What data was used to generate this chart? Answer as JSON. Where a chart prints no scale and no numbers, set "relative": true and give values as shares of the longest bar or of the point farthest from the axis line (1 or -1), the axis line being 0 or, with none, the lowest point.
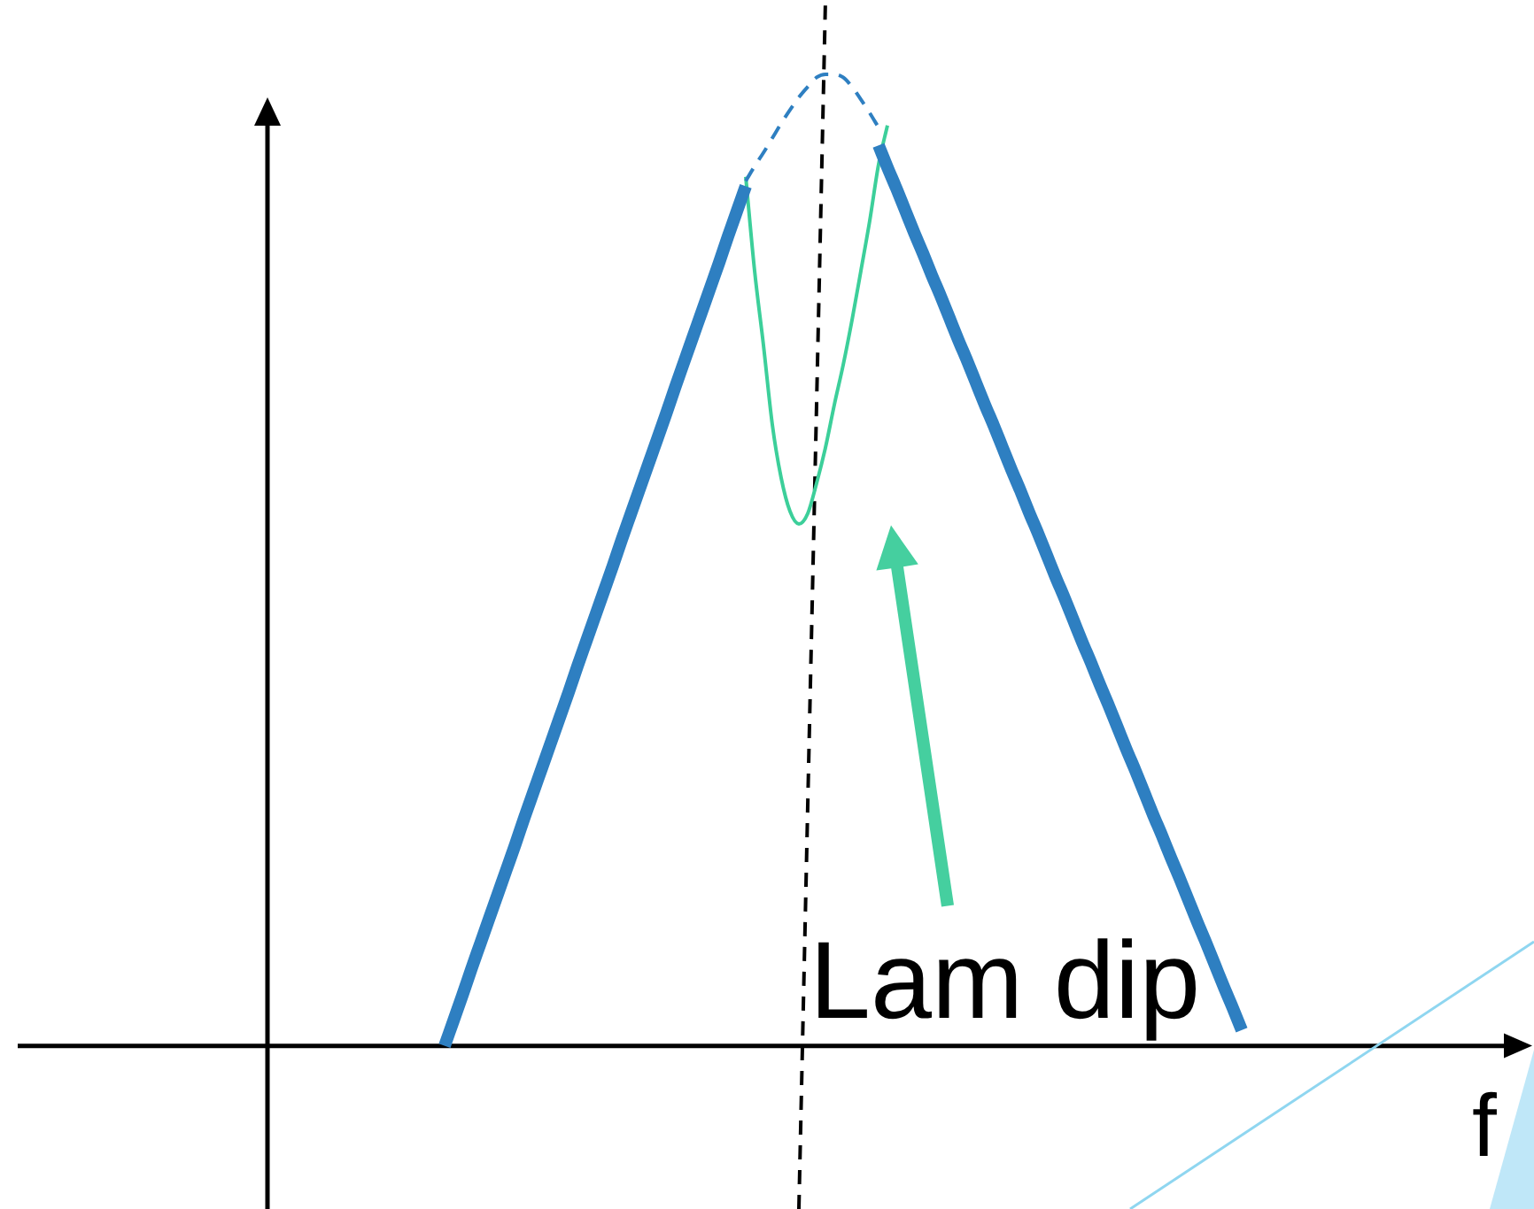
{
  "chart_data": {
    "type": "line",
    "relative": true,
    "tick_labels": false,
    "xlabel": "f",
    "annotations": [
      "Lam dip"
    ],
    "categories": [
      null,
      null,
      null,
      null,
      null,
      null,
      null,
      null,
      null,
      null,
      null,
      null,
      null,
      null,
      null,
      null,
      null,
      null,
      null,
      null,
      null,
      null,
      null,
      null,
      null,
      null,
      null,
      null,
      null,
      null,
      null,
      null,
      null,
      null,
      null,
      null,
      null,
      null,
      null,
      null,
      null,
      null,
      null,
      null,
      null,
      null,
      null,
      null,
      null,
      null,
      null,
      null,
      null,
      null,
      null,
      null,
      null,
      null,
      null,
      null,
      null,
      null,
      null,
      null,
      null,
      null,
      null,
      null,
      null,
      null,
      null,
      null,
      null,
      null,
      null,
      null,
      null,
      null,
      null,
      null,
      null,
      null,
      null,
      null,
      null,
      null,
      null,
      null,
      null,
      null,
      null,
      null,
      null,
      null,
      null,
      null,
      null,
      null,
      null,
      null,
      null,
      null,
      null,
      null,
      null,
      null,
      null,
      null,
      null,
      null,
      null,
      null,
      null,
      null,
      null,
      null,
      null,
      null,
      null,
      null,
      null,
      null,
      null,
      null,
      null,
      null,
      null,
      null,
      null,
      null,
      null,
      null,
      null,
      null,
      null,
      null,
      null,
      null,
      null,
      null,
      null,
      null,
      null,
      null
    ],
    "series": [
      {
        "color": "#2e7fc1",
        "values": [
          null,
          null,
          null,
          null,
          null,
          null,
          null,
          null,
          null,
          null,
          null,
          null,
          null,
          null,
          null,
          null,
          null,
          null,
          null,
          null,
          0,
          0.024,
          0.048,
          0.073,
          0.097,
          0.121,
          0.145,
          0.169,
          0.193,
          0.218,
          0.242,
          0.266,
          0.29,
          0.314,
          0.338,
          0.363,
          0.387,
          0.411,
          0.435,
          0.459,
          0.484,
          0.508,
          0.532,
          0.556,
          0.58,
          0.604,
          0.629,
          0.653,
          0.677,
          0.701,
          0.725,
          0.749,
          0.774,
          0.798,
          0.822,
          null,
          null,
          null,
          null,
          null,
          null,
          null,
          null,
          null,
          null,
          null,
          null,
          null,
          null,
          null,
          null,
          null,
          null,
          null,
          null,
          null,
          null,
          null,
          null,
          null,
          null,
          null,
          null,
          null,
          null,
          null,
          null,
          null,
          null,
          null,
          null,
          null,
          null,
          null,
          null,
          null,
          null,
          null,
          null,
          null,
          null,
          null,
          null,
          null,
          null,
          null,
          null,
          null,
          null,
          null,
          null,
          null,
          null,
          null,
          null,
          null,
          null,
          null,
          null,
          null,
          null,
          null,
          null,
          null,
          null,
          null,
          null,
          null,
          null,
          null,
          null,
          null,
          null,
          null,
          null,
          null,
          null,
          null,
          null,
          null,
          null,
          null,
          null,
          null
        ]
      },
      {
        "color": "#2e7fc1",
        "line_style": "dashed",
        "values": [
          null,
          null,
          null,
          null,
          null,
          null,
          null,
          null,
          null,
          null,
          null,
          null,
          null,
          null,
          null,
          null,
          null,
          null,
          null,
          null,
          null,
          null,
          null,
          null,
          null,
          null,
          null,
          null,
          null,
          null,
          null,
          null,
          null,
          null,
          null,
          null,
          null,
          null,
          null,
          null,
          null,
          null,
          null,
          null,
          null,
          null,
          null,
          null,
          null,
          null,
          null,
          null,
          null,
          null,
          0.827,
          0.841,
          0.854,
          0.868,
          0.882,
          0.895,
          0.907,
          0.917,
          0.926,
          0.929,
          0.929,
          0.926,
          0.917,
          0.905,
          0.892,
          0.878,
          null,
          null,
          null,
          null,
          null,
          null,
          null,
          null,
          null,
          null,
          null,
          null,
          null,
          null,
          null,
          null,
          null,
          null,
          null,
          null,
          null,
          null,
          null,
          null,
          null,
          null,
          null,
          null,
          null,
          null,
          null,
          null,
          null,
          null,
          null,
          null,
          null,
          null,
          null,
          null,
          null,
          null,
          null,
          null,
          null,
          null,
          null,
          null,
          null,
          null,
          null,
          null,
          null,
          null,
          null,
          null,
          null,
          null,
          null,
          null,
          null,
          null,
          null,
          null,
          null,
          null,
          null,
          null,
          null,
          null,
          null,
          null,
          null,
          null
        ]
      },
      {
        "color": "#2e7fc1",
        "values": [
          null,
          null,
          null,
          null,
          null,
          null,
          null,
          null,
          null,
          null,
          null,
          null,
          null,
          null,
          null,
          null,
          null,
          null,
          null,
          null,
          null,
          null,
          null,
          null,
          null,
          null,
          null,
          null,
          null,
          null,
          null,
          null,
          null,
          null,
          null,
          null,
          null,
          null,
          null,
          null,
          null,
          null,
          null,
          null,
          null,
          null,
          null,
          null,
          null,
          null,
          null,
          null,
          null,
          null,
          null,
          null,
          null,
          null,
          null,
          null,
          null,
          null,
          null,
          null,
          null,
          null,
          null,
          null,
          null,
          0.861,
          0.84,
          0.82,
          0.799,
          0.778,
          0.758,
          0.737,
          0.717,
          0.696,
          0.675,
          0.655,
          0.634,
          0.613,
          0.593,
          0.572,
          0.551,
          0.531,
          0.51,
          0.49,
          0.469,
          0.448,
          0.428,
          0.407,
          0.386,
          0.366,
          0.345,
          0.325,
          0.304,
          0.283,
          0.263,
          0.242,
          0.221,
          0.201,
          0.18,
          0.16,
          0.139,
          0.118,
          0.098,
          0.077,
          0.056,
          0.036,
          0.015,
          null,
          null,
          null,
          null,
          null,
          null,
          null,
          null,
          null,
          null,
          null,
          null,
          null,
          null,
          null,
          null,
          null,
          null,
          null,
          null,
          null,
          null,
          null,
          null,
          null,
          null,
          null,
          null,
          null,
          null,
          null,
          null,
          null
        ]
      },
      {
        "color": "#3ccf9a",
        "values": [
          null,
          null,
          null,
          null,
          null,
          null,
          null,
          null,
          null,
          null,
          null,
          null,
          null,
          null,
          null,
          null,
          null,
          null,
          null,
          null,
          null,
          null,
          null,
          null,
          null,
          null,
          null,
          null,
          null,
          null,
          null,
          null,
          null,
          null,
          null,
          null,
          null,
          null,
          null,
          null,
          null,
          null,
          null,
          null,
          null,
          null,
          null,
          null,
          null,
          null,
          null,
          null,
          null,
          null,
          0.831,
          0.741,
          0.67,
          0.594,
          0.543,
          0.511,
          0.499,
          0.509,
          0.538,
          0.572,
          0.613,
          0.651,
          0.694,
          0.741,
          0.789,
          0.843,
          0.88,
          null,
          null,
          null,
          null,
          null,
          null,
          null,
          null,
          null,
          null,
          null,
          null,
          null,
          null,
          null,
          null,
          null,
          null,
          null,
          null,
          null,
          null,
          null,
          null,
          null,
          null,
          null,
          null,
          null,
          null,
          null,
          null,
          null,
          null,
          null,
          null,
          null,
          null,
          null,
          null,
          null,
          null,
          null,
          null,
          null,
          null,
          null,
          null,
          null,
          null,
          null,
          null,
          null,
          null,
          null,
          null,
          null,
          null,
          null,
          null,
          null,
          null,
          null,
          null,
          null,
          null,
          null,
          null,
          null,
          null,
          null,
          null,
          null
        ]
      },
      {
        "color": "#000000",
        "line_style": "dashed",
        "values": [
          null,
          null,
          null,
          null,
          null,
          null,
          null,
          null,
          null,
          null,
          null,
          null,
          null,
          null,
          null,
          null,
          null,
          null,
          null,
          null,
          null,
          null,
          null,
          null,
          null,
          null,
          null,
          null,
          null,
          null,
          null,
          null,
          null,
          null,
          null,
          null,
          null,
          null,
          null,
          null,
          null,
          null,
          null,
          null,
          null,
          null,
          null,
          null,
          null,
          null,
          null,
          null,
          null,
          null,
          null,
          null,
          null,
          null,
          null,
          null,
          -0.156,
          0.23,
          0.614,
          1,
          null,
          null,
          null,
          null,
          null,
          null,
          null,
          null,
          null,
          null,
          null,
          null,
          null,
          null,
          null,
          null,
          null,
          null,
          null,
          null,
          null,
          null,
          null,
          null,
          null,
          null,
          null,
          null,
          null,
          null,
          null,
          null,
          null,
          null,
          null,
          null,
          null,
          null,
          null,
          null,
          null,
          null,
          null,
          null,
          null,
          null,
          null,
          null,
          null,
          null,
          null,
          null,
          null,
          null,
          null,
          null,
          null,
          null,
          null,
          null,
          null,
          null,
          null,
          null,
          null,
          null,
          null,
          null,
          null,
          null,
          null,
          null,
          null,
          null,
          null,
          null,
          null,
          null,
          null,
          null
        ]
      }
    ]
  }
}
